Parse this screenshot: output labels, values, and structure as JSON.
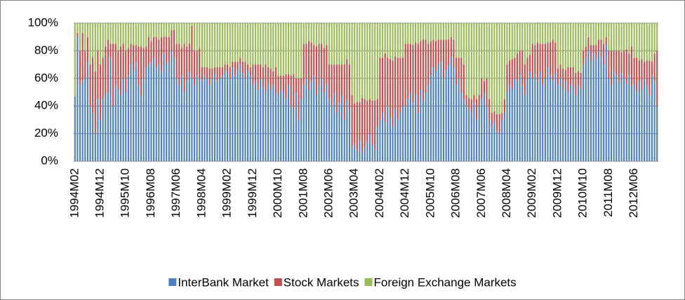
{
  "chart_data": {
    "type": "bar",
    "stacked": true,
    "categories": [
      "1994M02",
      null,
      null,
      null,
      null,
      null,
      null,
      null,
      null,
      null,
      "1994M12",
      null,
      null,
      null,
      null,
      null,
      null,
      null,
      null,
      null,
      "1995M10",
      null,
      null,
      null,
      null,
      null,
      null,
      null,
      null,
      null,
      "1996M08",
      null,
      null,
      null,
      null,
      null,
      null,
      null,
      null,
      null,
      "1997M06",
      null,
      null,
      null,
      null,
      null,
      null,
      null,
      null,
      null,
      "1998M04",
      null,
      null,
      null,
      null,
      null,
      null,
      null,
      null,
      null,
      "1999M02",
      null,
      null,
      null,
      null,
      null,
      null,
      null,
      null,
      null,
      "1999M12",
      null,
      null,
      null,
      null,
      null,
      null,
      null,
      null,
      null,
      "2000M10",
      null,
      null,
      null,
      null,
      null,
      null,
      null,
      null,
      null,
      "2001M08",
      null,
      null,
      null,
      null,
      null,
      null,
      null,
      null,
      null,
      "2002M06",
      null,
      null,
      null,
      null,
      null,
      null,
      null,
      null,
      null,
      "2003M04",
      null,
      null,
      null,
      null,
      null,
      null,
      null,
      null,
      null,
      "2004M02",
      null,
      null,
      null,
      null,
      null,
      null,
      null,
      null,
      null,
      "2004M12",
      null,
      null,
      null,
      null,
      null,
      null,
      null,
      null,
      null,
      "2005M10",
      null,
      null,
      null,
      null,
      null,
      null,
      null,
      null,
      null,
      "2006M08",
      null,
      null,
      null,
      null,
      null,
      null,
      null,
      null,
      null,
      "2007M06",
      null,
      null,
      null,
      null,
      null,
      null,
      null,
      null,
      null,
      "2008M04",
      null,
      null,
      null,
      null,
      null,
      null,
      null,
      null,
      null,
      "2009M02",
      null,
      null,
      null,
      null,
      null,
      null,
      null,
      null,
      null,
      "2009M12",
      null,
      null,
      null,
      null,
      null,
      null,
      null,
      null,
      null,
      "2010M10",
      null,
      null,
      null,
      null,
      null,
      null,
      null,
      null,
      null,
      "2011M08",
      null,
      null,
      null,
      null,
      null,
      null,
      null,
      null,
      null,
      "2012M06",
      null,
      null,
      null,
      null,
      null,
      null,
      null,
      null,
      null
    ],
    "series": [
      {
        "name": "InterBank Market",
        "color": "#4f81bd",
        "values": [
          47,
          90,
          55,
          58,
          60,
          72,
          40,
          35,
          20,
          45,
          30,
          45,
          48,
          50,
          75,
          40,
          55,
          52,
          48,
          60,
          50,
          62,
          70,
          66,
          72,
          55,
          48,
          60,
          68,
          70,
          72,
          75,
          68,
          70,
          65,
          78,
          70,
          72,
          80,
          75,
          60,
          55,
          62,
          50,
          58,
          65,
          60,
          55,
          62,
          60,
          58,
          62,
          60,
          55,
          60,
          63,
          58,
          60,
          62,
          65,
          65,
          60,
          68,
          62,
          66,
          70,
          64,
          60,
          66,
          62,
          55,
          58,
          52,
          60,
          54,
          50,
          56,
          52,
          55,
          50,
          48,
          52,
          50,
          45,
          55,
          40,
          38,
          50,
          30,
          45,
          55,
          60,
          52,
          58,
          62,
          48,
          55,
          60,
          50,
          56,
          45,
          40,
          50,
          35,
          42,
          48,
          30,
          44,
          38,
          10,
          12,
          8,
          15,
          6,
          10,
          14,
          20,
          12,
          8,
          25,
          30,
          35,
          28,
          40,
          32,
          25,
          38,
          30,
          35,
          40,
          40,
          45,
          50,
          42,
          48,
          35,
          52,
          44,
          50,
          55,
          62,
          68,
          65,
          70,
          72,
          60,
          66,
          70,
          75,
          68,
          55,
          60,
          50,
          45,
          40,
          38,
          35,
          42,
          30,
          40,
          45,
          50,
          40,
          30,
          25,
          28,
          22,
          20,
          30,
          35,
          50,
          55,
          52,
          60,
          58,
          62,
          55,
          48,
          60,
          65,
          60,
          62,
          58,
          65,
          55,
          60,
          68,
          62,
          58,
          64,
          55,
          60,
          52,
          58,
          50,
          56,
          54,
          48,
          55,
          52,
          70,
          75,
          80,
          72,
          78,
          74,
          80,
          76,
          70,
          85,
          60,
          55,
          65,
          62,
          58,
          64,
          60,
          56,
          62,
          55,
          55,
          50,
          58,
          52,
          60,
          55,
          48,
          62,
          58,
          40
        ]
      },
      {
        "name": "Stock Markets",
        "color": "#c0504d",
        "values": [
          0,
          3,
          25,
          35,
          20,
          18,
          30,
          40,
          45,
          35,
          40,
          30,
          35,
          38,
          10,
          45,
          30,
          28,
          35,
          25,
          30,
          20,
          15,
          18,
          12,
          28,
          35,
          22,
          15,
          20,
          15,
          15,
          22,
          18,
          25,
          12,
          20,
          18,
          15,
          20,
          25,
          30,
          20,
          35,
          25,
          20,
          38,
          25,
          18,
          22,
          10,
          6,
          8,
          12,
          7,
          5,
          10,
          8,
          6,
          5,
          5,
          8,
          4,
          10,
          6,
          5,
          8,
          12,
          4,
          6,
          15,
          12,
          18,
          10,
          14,
          20,
          12,
          15,
          10,
          18,
          14,
          10,
          12,
          18,
          8,
          22,
          25,
          10,
          30,
          15,
          30,
          25,
          35,
          28,
          22,
          35,
          30,
          25,
          32,
          28,
          25,
          30,
          20,
          35,
          28,
          22,
          40,
          30,
          32,
          38,
          30,
          35,
          28,
          40,
          35,
          30,
          25,
          32,
          36,
          20,
          45,
          40,
          50,
          35,
          42,
          48,
          38,
          45,
          40,
          35,
          45,
          40,
          35,
          42,
          38,
          50,
          35,
          44,
          38,
          30,
          25,
          20,
          22,
          18,
          16,
          28,
          22,
          18,
          15,
          20,
          20,
          15,
          25,
          25,
          8,
          8,
          10,
          6,
          15,
          8,
          15,
          8,
          20,
          15,
          10,
          8,
          12,
          14,
          5,
          10,
          20,
          18,
          22,
          15,
          20,
          18,
          25,
          22,
          15,
          12,
          25,
          22,
          28,
          20,
          30,
          25,
          18,
          24,
          30,
          22,
          12,
          10,
          15,
          8,
          18,
          12,
          14,
          16,
          10,
          12,
          10,
          8,
          10,
          12,
          6,
          10,
          8,
          12,
          15,
          5,
          20,
          25,
          15,
          18,
          22,
          15,
          20,
          25,
          16,
          28,
          20,
          25,
          15,
          22,
          12,
          18,
          25,
          10,
          20,
          40
        ]
      },
      {
        "name": "Foreign Exchange Markets",
        "color": "#9bbb59",
        "values": [
          53,
          7,
          20,
          7,
          20,
          10,
          30,
          25,
          35,
          20,
          30,
          25,
          17,
          12,
          15,
          15,
          15,
          20,
          17,
          15,
          20,
          18,
          15,
          16,
          16,
          17,
          17,
          18,
          17,
          10,
          13,
          10,
          10,
          12,
          10,
          10,
          10,
          10,
          5,
          5,
          15,
          15,
          18,
          15,
          17,
          15,
          2,
          20,
          20,
          18,
          32,
          32,
          32,
          33,
          33,
          32,
          32,
          32,
          32,
          30,
          30,
          32,
          28,
          28,
          28,
          25,
          28,
          28,
          30,
          32,
          30,
          30,
          30,
          30,
          32,
          30,
          32,
          33,
          35,
          32,
          38,
          38,
          38,
          37,
          37,
          38,
          37,
          40,
          40,
          40,
          15,
          15,
          13,
          14,
          16,
          17,
          15,
          15,
          18,
          16,
          30,
          30,
          30,
          30,
          30,
          30,
          30,
          26,
          30,
          52,
          58,
          57,
          57,
          54,
          55,
          56,
          55,
          56,
          56,
          55,
          25,
          25,
          22,
          25,
          26,
          27,
          24,
          25,
          25,
          25,
          15,
          15,
          15,
          16,
          14,
          15,
          13,
          12,
          12,
          15,
          13,
          12,
          13,
          12,
          12,
          12,
          12,
          12,
          10,
          12,
          25,
          25,
          25,
          30,
          52,
          54,
          55,
          52,
          55,
          52,
          40,
          42,
          40,
          55,
          65,
          64,
          66,
          66,
          65,
          55,
          30,
          27,
          26,
          25,
          22,
          20,
          20,
          30,
          25,
          23,
          15,
          16,
          14,
          15,
          15,
          15,
          14,
          14,
          12,
          14,
          33,
          30,
          33,
          34,
          32,
          32,
          32,
          36,
          35,
          36,
          20,
          17,
          10,
          16,
          16,
          16,
          12,
          12,
          15,
          10,
          20,
          20,
          20,
          20,
          20,
          21,
          20,
          19,
          22,
          17,
          25,
          25,
          27,
          26,
          28,
          27,
          27,
          28,
          22,
          20
        ]
      }
    ],
    "ylim": [
      0,
      100
    ],
    "yticks": [
      {
        "value": 0,
        "label": "0%"
      },
      {
        "value": 20,
        "label": "20%"
      },
      {
        "value": 40,
        "label": "40%"
      },
      {
        "value": 60,
        "label": "60%"
      },
      {
        "value": 80,
        "label": "80%"
      },
      {
        "value": 100,
        "label": "100%"
      }
    ],
    "grid": true,
    "legend": "bottom"
  }
}
